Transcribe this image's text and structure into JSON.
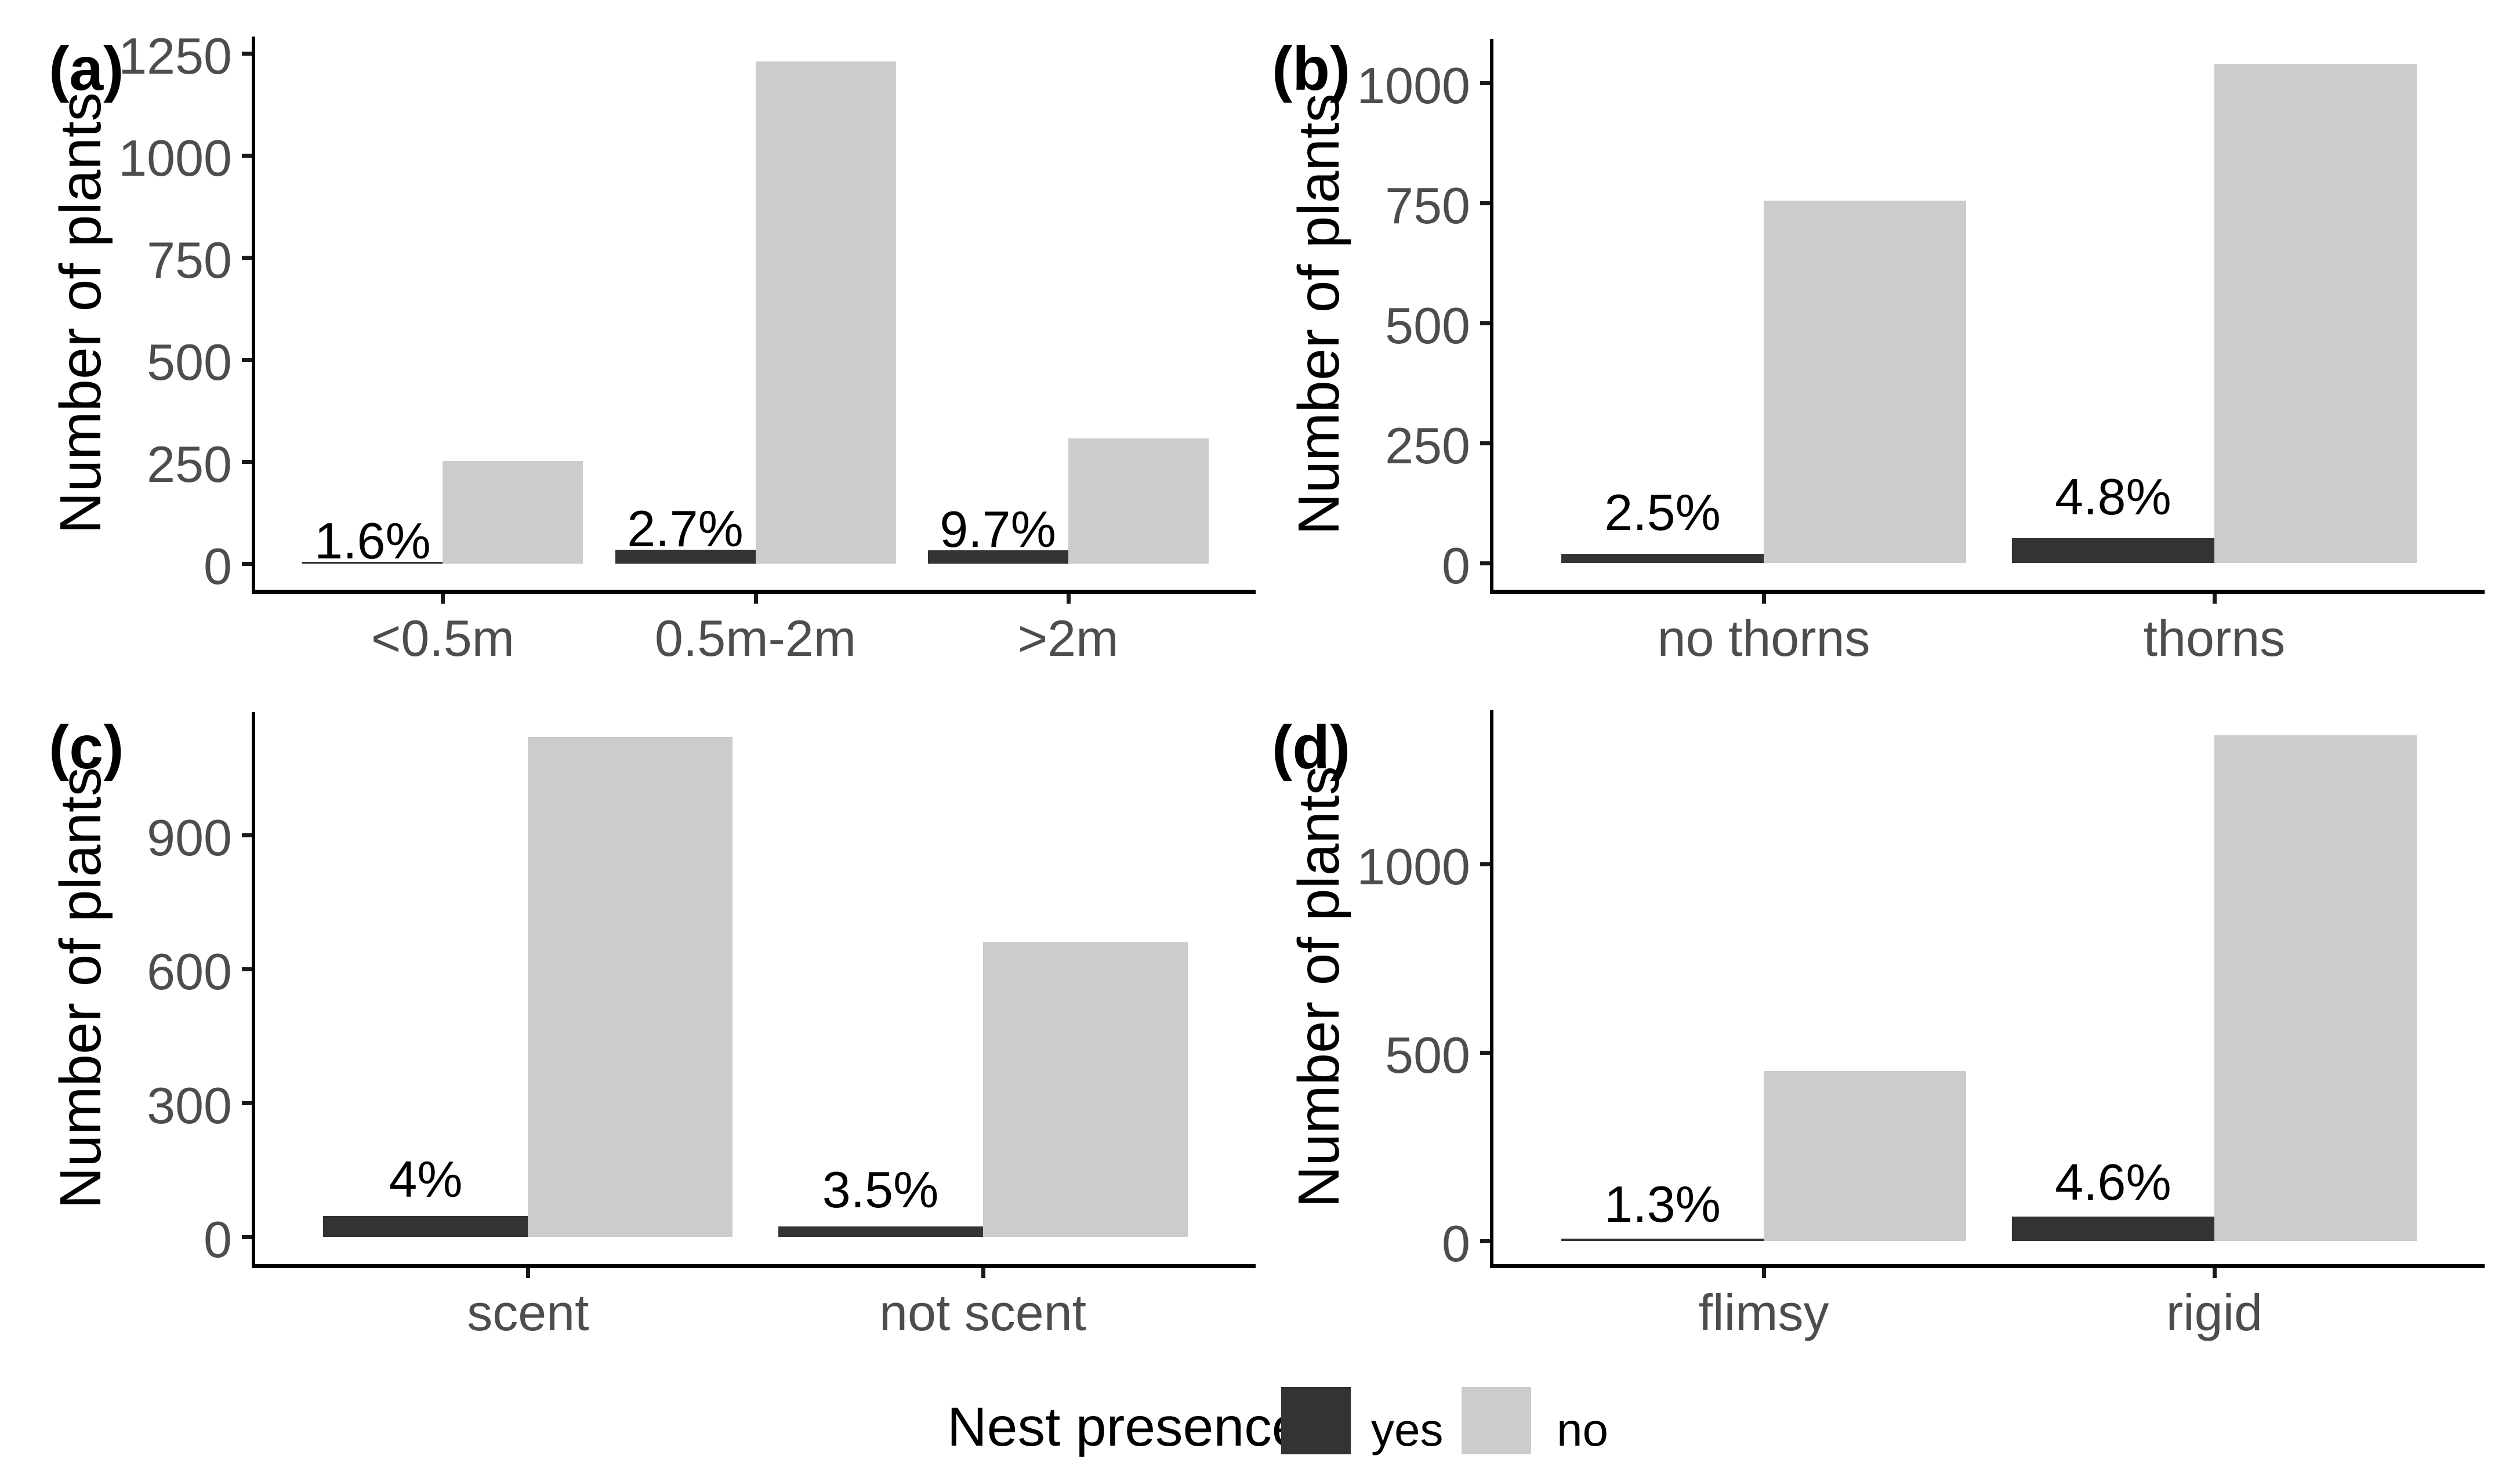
{
  "figure": {
    "background": "#ffffff",
    "colors": {
      "yes_bar": "#333333",
      "no_bar": "#cccccc",
      "axis_line": "#000000",
      "tick_text": "#4d4d4d",
      "annotation_text": "#000000"
    }
  },
  "chart_data": [
    {
      "type": "bar",
      "panel_tag": "(a)",
      "ylabel": "Number of plants",
      "xlabel": "",
      "categories": [
        "<0.5m",
        "0.5m-2m",
        ">2m"
      ],
      "series": [
        {
          "name": "yes",
          "values": [
            4,
            34,
            33
          ]
        },
        {
          "name": "no",
          "values": [
            251,
            1230,
            307
          ]
        }
      ],
      "bar_labels": [
        "1.6%",
        "2.7%",
        "9.7%"
      ],
      "yticks": [
        0,
        250,
        500,
        750,
        1000,
        1250
      ],
      "ylim": [
        0,
        1292
      ],
      "grid": false,
      "legend_position": "bottom"
    },
    {
      "type": "bar",
      "panel_tag": "(b)",
      "ylabel": "Number of plants",
      "xlabel": "",
      "categories": [
        "no thorns",
        "thorns"
      ],
      "series": [
        {
          "name": "yes",
          "values": [
            19,
            52
          ]
        },
        {
          "name": "no",
          "values": [
            755,
            1040
          ]
        }
      ],
      "bar_labels": [
        "2.5%",
        "4.8%"
      ],
      "yticks": [
        0,
        250,
        500,
        750,
        1000
      ],
      "ylim": [
        0,
        1092
      ],
      "grid": false,
      "legend_position": "bottom"
    },
    {
      "type": "bar",
      "panel_tag": "(c)",
      "ylabel": "Number of plants",
      "xlabel": "",
      "categories": [
        "scent",
        "not scent"
      ],
      "series": [
        {
          "name": "yes",
          "values": [
            47,
            24
          ]
        },
        {
          "name": "no",
          "values": [
            1120,
            660
          ]
        }
      ],
      "bar_labels": [
        "4%",
        "3.5%"
      ],
      "yticks": [
        0,
        300,
        600,
        900
      ],
      "ylim": [
        0,
        1176
      ],
      "grid": false,
      "legend_position": "bottom"
    },
    {
      "type": "bar",
      "panel_tag": "(d)",
      "ylabel": "Number of plants",
      "xlabel": "",
      "categories": [
        "flimsy",
        "rigid"
      ],
      "series": [
        {
          "name": "yes",
          "values": [
            6,
            65
          ]
        },
        {
          "name": "no",
          "values": [
            450,
            1342
          ]
        }
      ],
      "bar_labels": [
        "1.3%",
        "4.6%"
      ],
      "yticks": [
        0,
        500,
        1000
      ],
      "ylim": [
        0,
        1409
      ],
      "grid": false,
      "legend_position": "bottom"
    }
  ],
  "legend": {
    "title": "Nest presence",
    "items": [
      {
        "label": "yes",
        "color": "#333333"
      },
      {
        "label": "no",
        "color": "#cccccc"
      }
    ]
  }
}
